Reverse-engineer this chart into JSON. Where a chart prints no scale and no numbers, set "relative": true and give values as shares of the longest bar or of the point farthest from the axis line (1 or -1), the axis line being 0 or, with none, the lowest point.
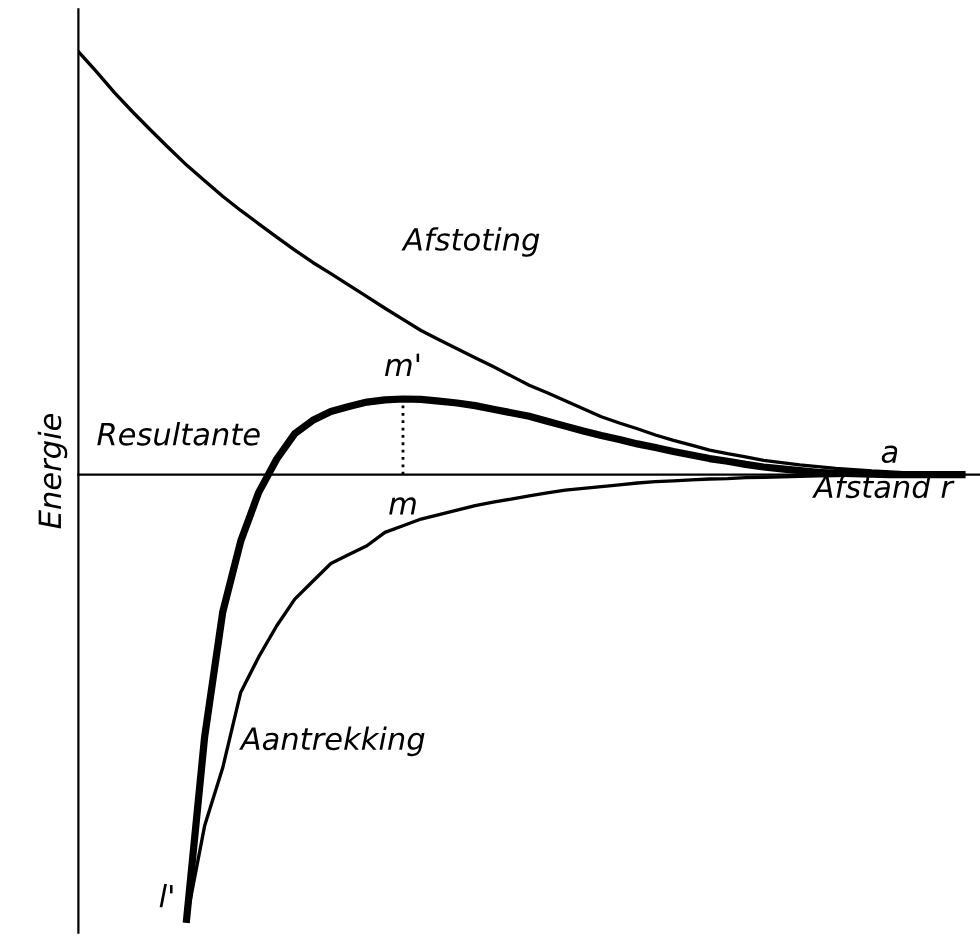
{
  "chart_data": {
    "type": "line",
    "relative": true,
    "ylabel": "Energie",
    "xlabel": "Afstand r",
    "legend": false,
    "marker": "none",
    "categories": [
      null,
      null,
      null,
      null,
      null,
      null,
      null,
      null,
      null,
      null,
      null,
      null,
      null,
      null,
      null,
      null,
      null,
      null,
      null,
      null,
      null,
      null,
      null,
      null,
      null,
      null,
      null,
      null,
      null,
      null,
      null,
      null,
      null,
      null,
      null,
      null,
      null,
      null,
      null,
      null,
      null,
      null,
      null,
      null,
      null,
      null,
      null,
      null,
      null,
      null
    ],
    "series": [
      {
        "name": "Afstoting",
        "color": "#000000",
        "values": [
          0.951,
          0.906,
          0.859,
          0.816,
          0.775,
          0.735,
          0.696,
          0.661,
          0.626,
          0.594,
          0.564,
          0.534,
          0.505,
          0.477,
          0.452,
          0.426,
          0.4,
          0.374,
          0.349,
          0.324,
          0.303,
          0.283,
          0.263,
          0.243,
          0.222,
          0.201,
          0.184,
          0.166,
          0.148,
          0.13,
          0.116,
          0.103,
          0.089,
          0.077,
          0.066,
          0.055,
          0.047,
          0.04,
          0.032,
          0.027,
          0.022,
          0.018,
          0.014,
          0.011,
          0.008,
          0.006,
          0.004,
          0.003,
          0.001,
          0
        ]
      },
      {
        "name": "Resultante",
        "color": "#000000",
        "values": [
          null,
          null,
          null,
          null,
          null,
          null,
          -1,
          -0.59,
          -0.31,
          -0.15,
          -0.04,
          0.035,
          0.092,
          0.122,
          0.142,
          0.153,
          0.163,
          0.168,
          0.17,
          0.169,
          0.165,
          0.161,
          0.155,
          0.147,
          0.139,
          0.131,
          0.12,
          0.109,
          0.098,
          0.088,
          0.079,
          0.069,
          0.061,
          0.052,
          0.044,
          0.036,
          0.03,
          0.023,
          0.017,
          0.013,
          0.009,
          0.005,
          0.003,
          0.002,
          0.001,
          0,
          0,
          0,
          0,
          0
        ]
      },
      {
        "name": "Aantrekking",
        "color": "#000000",
        "values": [
          null,
          null,
          null,
          null,
          null,
          null,
          -1,
          -0.79,
          -0.66,
          -0.49,
          -0.41,
          -0.34,
          -0.28,
          -0.24,
          -0.2,
          -0.18,
          -0.16,
          -0.13,
          -0.115,
          -0.1,
          -0.09,
          -0.08,
          -0.07,
          -0.062,
          -0.055,
          -0.048,
          -0.041,
          -0.035,
          -0.031,
          -0.027,
          -0.023,
          -0.019,
          -0.016,
          -0.014,
          -0.012,
          -0.01,
          -0.009,
          -0.007,
          -0.006,
          -0.005,
          -0.004,
          -0.003,
          -0.002,
          -0.001,
          0,
          0,
          0,
          0,
          0,
          0
        ]
      }
    ],
    "annotations": [
      "m'",
      "m",
      "a",
      "l'"
    ]
  }
}
